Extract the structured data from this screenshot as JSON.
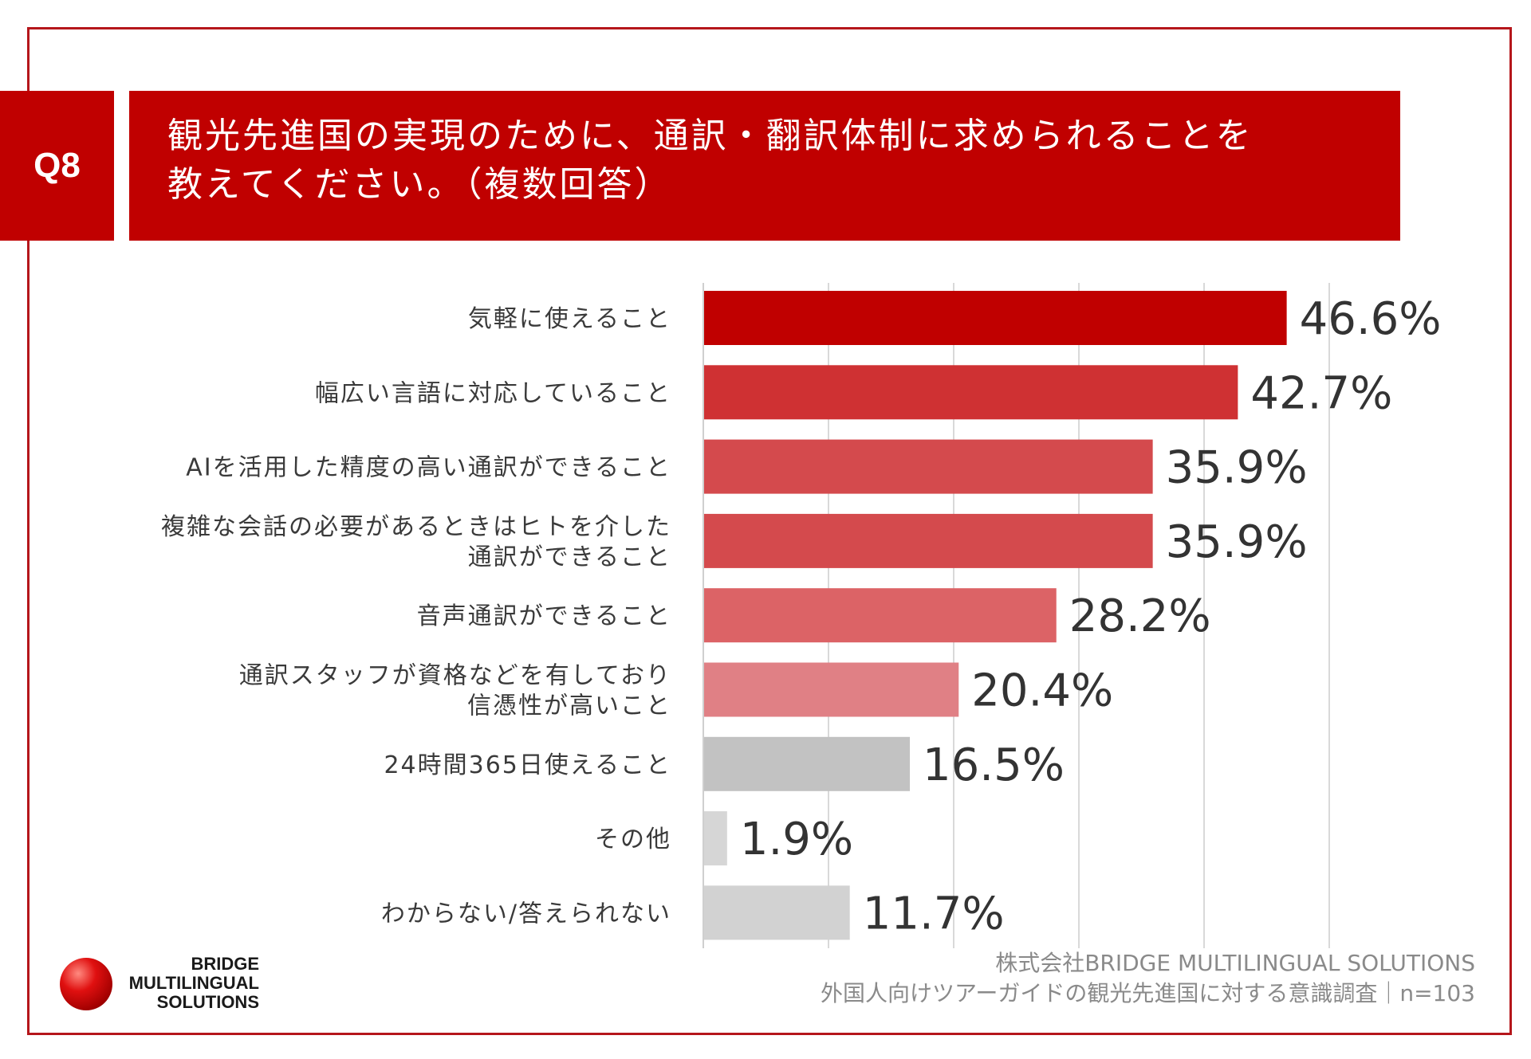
{
  "question": {
    "badge": "Q8",
    "title_line1": "観光先進国の実現のために、通訳・翻訳体制に求められることを",
    "title_line2": "教えてください。（複数回答）"
  },
  "chart_data": {
    "type": "bar",
    "orientation": "horizontal",
    "xlim": [
      0,
      50
    ],
    "grid": true,
    "categories": [
      [
        "気軽に使えること"
      ],
      [
        "幅広い言語に対応していること"
      ],
      [
        "AIを活用した精度の高い通訳ができること"
      ],
      [
        "複雑な会話の必要があるときはヒトを介した",
        "通訳ができること"
      ],
      [
        "音声通訳ができること"
      ],
      [
        "通訳スタッフが資格などを有しており",
        "信憑性が高いこと"
      ],
      [
        "24時間365日使えること"
      ],
      [
        "その他"
      ],
      [
        "わからない/答えられない"
      ]
    ],
    "values": [
      46.6,
      42.7,
      35.9,
      35.9,
      28.2,
      20.4,
      16.5,
      1.9,
      11.7
    ],
    "value_labels": [
      "46.6%",
      "42.7%",
      "35.9%",
      "35.9%",
      "28.2%",
      "20.4%",
      "16.5%",
      "1.9%",
      "11.7%"
    ],
    "colors": [
      "#c00000",
      "#cf3133",
      "#d44a4d",
      "#d44a4d",
      "#dc6366",
      "#e08085",
      "#c2c2c2",
      "#d6d6d6",
      "#d2d2d2"
    ]
  },
  "footer": {
    "company": "株式会社BRIDGE MULTILINGUAL SOLUTIONS",
    "survey": "外国人向けツアーガイドの観光先進国に対する意識調査｜n=103"
  },
  "logo": {
    "line1": "BRIDGE",
    "line2": "MULTILINGUAL",
    "line3": "SOLUTIONS"
  }
}
